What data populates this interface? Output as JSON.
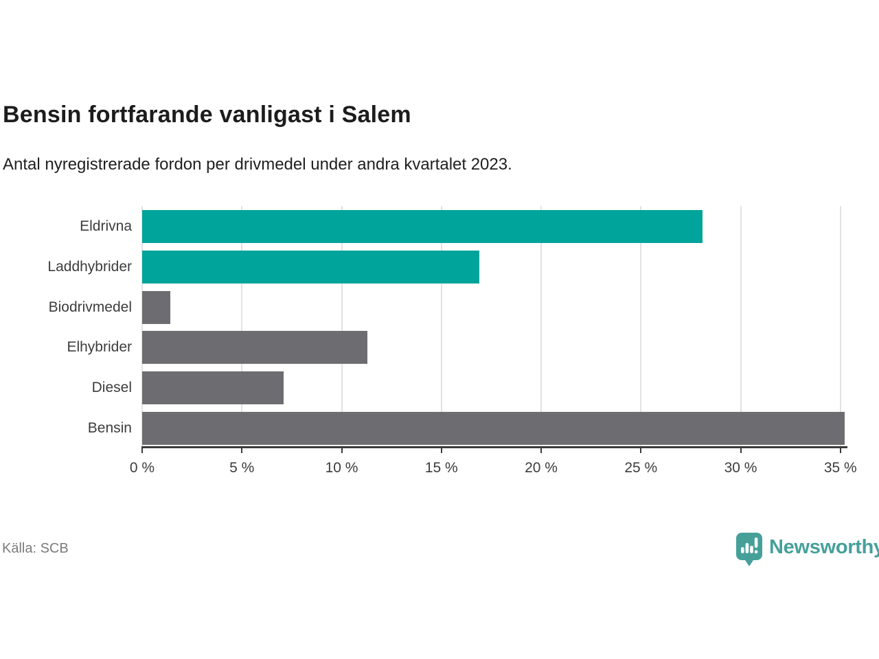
{
  "header": {
    "title": "Bensin fortfarande vanligast i Salem",
    "subtitle": "Antal nyregistrerade fordon per drivmedel under andra kvartalet 2023."
  },
  "footer": {
    "source": "Källa: SCB",
    "brand": {
      "name": "Newsworthy",
      "icon": "newsworthy-pin-barchart-icon",
      "color": "#45a09a"
    }
  },
  "colors": {
    "highlight": "#00a49b",
    "default": "#6d6d71",
    "grid": "#e2e2e2",
    "axis": "#3a3a3a"
  },
  "chart_data": {
    "type": "bar",
    "orientation": "horizontal",
    "title": "Bensin fortfarande vanligast i Salem",
    "subtitle": "Antal nyregistrerade fordon per drivmedel under andra kvartalet 2023.",
    "categories": [
      "Eldrivna",
      "Laddhybrider",
      "Biodrivmedel",
      "Elhybrider",
      "Diesel",
      "Bensin"
    ],
    "values": [
      28.1,
      16.9,
      1.4,
      11.3,
      7.1,
      35.2
    ],
    "bar_colors": [
      "highlight",
      "highlight",
      "default",
      "default",
      "default",
      "default"
    ],
    "unit": "%",
    "xlabel": "",
    "ylabel": "",
    "xlim": [
      0,
      35
    ],
    "x_ticks": [
      0,
      5,
      10,
      15,
      20,
      25,
      30,
      35
    ],
    "x_tick_labels": [
      "0 %",
      "5 %",
      "10 %",
      "15 %",
      "20 %",
      "25 %",
      "30 %",
      "35 %"
    ],
    "grid": true,
    "legend": false,
    "source": "Källa: SCB"
  }
}
